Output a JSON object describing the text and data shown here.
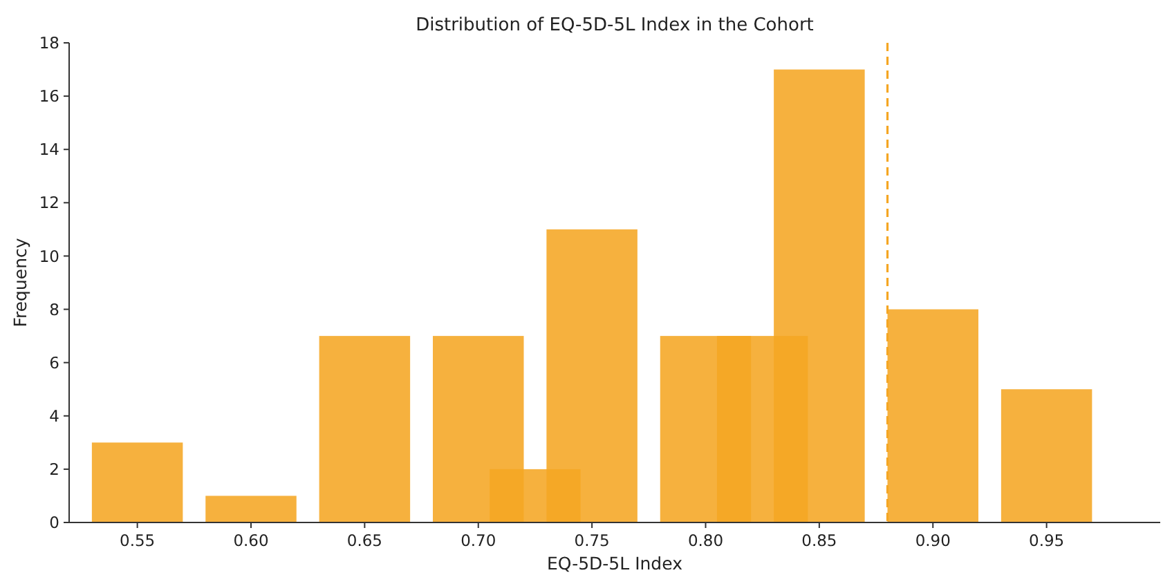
{
  "chart_data": {
    "type": "bar",
    "title": "Distribution of EQ-5D-5L Index in the Cohort",
    "xlabel": "EQ-5D-5L Index",
    "ylabel": "Frequency",
    "x": [
      0.55,
      0.6,
      0.65,
      0.7,
      0.725,
      0.75,
      0.8,
      0.825,
      0.85,
      0.9,
      0.95
    ],
    "values": [
      3,
      1,
      7,
      7,
      2,
      11,
      7,
      7,
      17,
      8,
      5
    ],
    "color": "#f5a623",
    "xlim": [
      0.52,
      1.0
    ],
    "xticks": [
      {
        "value": 0.55,
        "label": "0.55"
      },
      {
        "value": 0.6,
        "label": "0.60"
      },
      {
        "value": 0.65,
        "label": "0.65"
      },
      {
        "value": 0.7,
        "label": "0.70"
      },
      {
        "value": 0.75,
        "label": "0.75"
      },
      {
        "value": 0.8,
        "label": "0.80"
      },
      {
        "value": 0.85,
        "label": "0.85"
      },
      {
        "value": 0.9,
        "label": "0.90"
      },
      {
        "value": 0.95,
        "label": "0.95"
      }
    ],
    "ylim": [
      0,
      18
    ],
    "yticks": [
      0,
      2,
      4,
      6,
      8,
      10,
      12,
      14,
      16,
      18
    ],
    "ref_lines": [
      {
        "axis": "x",
        "value": 0.88,
        "color": "#f5a623",
        "line_style": "dashed"
      }
    ]
  }
}
